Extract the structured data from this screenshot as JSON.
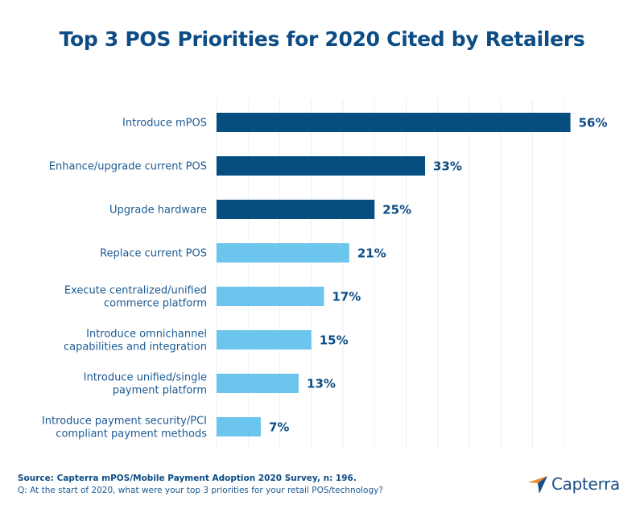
{
  "chart_data": {
    "type": "bar",
    "orientation": "horizontal",
    "title": "Top 3 POS Priorities for 2020 Cited by Retailers",
    "xlabel": "",
    "ylabel": "",
    "xlim": [
      0,
      55
    ],
    "grid": true,
    "grid_step": 5,
    "value_suffix": "%",
    "categories": [
      [
        "Introduce mPOS"
      ],
      [
        "Enhance/upgrade current POS"
      ],
      [
        "Upgrade hardware"
      ],
      [
        "Replace current POS"
      ],
      [
        "Execute centralized/unified",
        "commerce platform"
      ],
      [
        "Introduce omnichannel",
        "capabilities and integration"
      ],
      [
        "Introduce unified/single",
        "payment platform"
      ],
      [
        "Introduce payment security/PCI",
        "compliant payment methods"
      ]
    ],
    "values": [
      56,
      33,
      25,
      21,
      17,
      15,
      13,
      7
    ],
    "value_labels": [
      "56%",
      "33%",
      "25%",
      "21%",
      "17%",
      "15%",
      "13%",
      "7%"
    ],
    "highlight_top_n": 3,
    "colors": {
      "top": "#064d80",
      "rest": "#6cc5ec",
      "grid": "#e3f2fb",
      "label": "#1c5a92",
      "value": "#0d4c84"
    }
  },
  "footer": {
    "source": "Source: Capterra mPOS/Mobile Payment Adoption 2020 Survey, n: 196.",
    "question": "Q: At the start of 2020, what were your top 3 priorities for your retail POS/technology?"
  },
  "logo": {
    "text": "Capterra",
    "icon": "capterra-arrow-icon",
    "colors": {
      "orange": "#f28a2e",
      "light_blue": "#3cb3e6",
      "dark_blue": "#1a4e86"
    }
  }
}
